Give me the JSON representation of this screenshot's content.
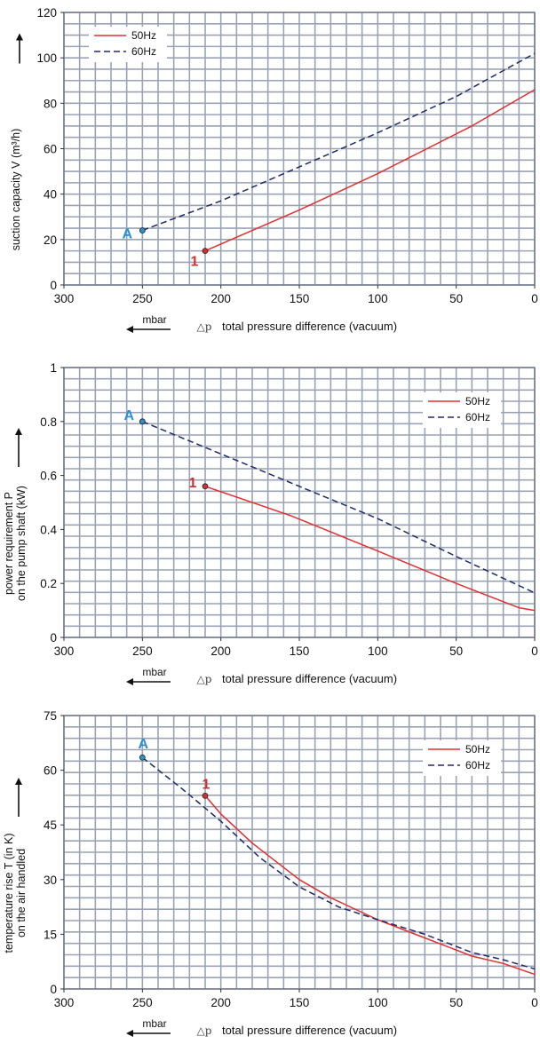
{
  "chart_data": [
    {
      "type": "line",
      "ylabel_lines": [
        "suction capacity V (m³/h)"
      ],
      "xlabel": "total pressure difference (vacuum)",
      "xunit": "mbar",
      "xsymbol": "△p",
      "xlim": [
        300,
        0
      ],
      "ylim": [
        0,
        120
      ],
      "xticks": [
        "300",
        "250",
        "200",
        "150",
        "100",
        "50",
        "0"
      ],
      "yticks": [
        "0",
        "20",
        "40",
        "60",
        "80",
        "100",
        "120"
      ],
      "grid": true,
      "legend_position": "top-left",
      "series": [
        {
          "name": "50Hz",
          "color": "#e03030",
          "style": "solid",
          "x": [
            210,
            200,
            150,
            100,
            40,
            0
          ],
          "y": [
            15,
            18,
            33,
            49,
            70,
            86
          ]
        },
        {
          "name": "60Hz",
          "color": "#1f2a6b",
          "style": "dashed",
          "x": [
            250,
            200,
            150,
            100,
            50,
            0
          ],
          "y": [
            24,
            37,
            52,
            67,
            83,
            102
          ]
        }
      ],
      "markers": [
        {
          "label": "A",
          "x": 250,
          "y": 24,
          "color": "#2b8fd0"
        },
        {
          "label": "1",
          "x": 210,
          "y": 15,
          "color": "#d03030"
        }
      ]
    },
    {
      "type": "line",
      "ylabel_lines": [
        "power requirement P",
        "on the pump shaft (kW)"
      ],
      "xlabel": "total pressure difference (vacuum)",
      "xunit": "mbar",
      "xsymbol": "△p",
      "xlim": [
        300,
        0
      ],
      "ylim": [
        0,
        1
      ],
      "xticks": [
        "300",
        "250",
        "200",
        "150",
        "100",
        "50",
        "0"
      ],
      "yticks": [
        "0",
        "0.2",
        "0.4",
        "0.6",
        "0.8",
        "1"
      ],
      "grid": true,
      "legend_position": "top-right",
      "series": [
        {
          "name": "50Hz",
          "color": "#e03030",
          "style": "solid",
          "x": [
            210,
            155,
            100,
            50,
            30,
            10,
            0
          ],
          "y": [
            0.56,
            0.45,
            0.32,
            0.2,
            0.155,
            0.11,
            0.1
          ]
        },
        {
          "name": "60Hz",
          "color": "#1f2a6b",
          "style": "dashed",
          "x": [
            250,
            200,
            150,
            100,
            50,
            0
          ],
          "y": [
            0.8,
            0.68,
            0.56,
            0.44,
            0.3,
            0.165
          ]
        }
      ],
      "markers": [
        {
          "label": "A",
          "x": 250,
          "y": 0.8,
          "color": "#2b8fd0"
        },
        {
          "label": "1",
          "x": 210,
          "y": 0.56,
          "color": "#d03030"
        }
      ]
    },
    {
      "type": "line",
      "ylabel_lines": [
        "temperature rise T (in K)",
        "on the air handled"
      ],
      "xlabel": "total pressure difference (vacuum)",
      "xunit": "mbar",
      "xsymbol": "△p",
      "xlim": [
        300,
        0
      ],
      "ylim": [
        0,
        75
      ],
      "xticks": [
        "300",
        "250",
        "200",
        "150",
        "100",
        "50",
        "0"
      ],
      "yticks": [
        "0",
        "15",
        "30",
        "45",
        "60",
        "75"
      ],
      "grid": true,
      "legend_position": "top-right",
      "series": [
        {
          "name": "50Hz",
          "color": "#e03030",
          "style": "solid",
          "x": [
            210,
            200,
            180,
            150,
            130,
            100,
            70,
            40,
            20,
            0
          ],
          "y": [
            53,
            48,
            40,
            30,
            25,
            19,
            14,
            9,
            7,
            4
          ]
        },
        {
          "name": "60Hz",
          "color": "#1f2a6b",
          "style": "dashed",
          "x": [
            250,
            225,
            200,
            175,
            150,
            125,
            100,
            70,
            40,
            20,
            0
          ],
          "y": [
            63.5,
            55,
            46,
            36,
            28,
            22.5,
            19,
            15,
            10,
            8,
            5.5
          ]
        }
      ],
      "markers": [
        {
          "label": "A",
          "x": 250,
          "y": 63.5,
          "color": "#2b8fd0"
        },
        {
          "label": "1",
          "x": 210,
          "y": 53,
          "color": "#d03030"
        }
      ]
    }
  ]
}
